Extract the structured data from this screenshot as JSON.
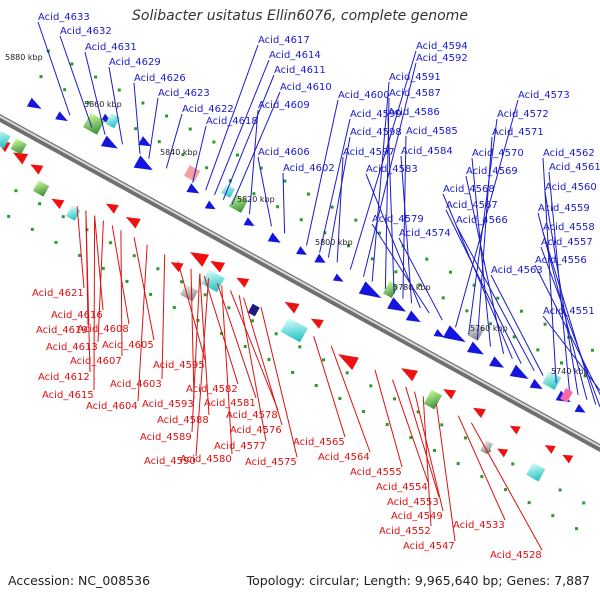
{
  "title": "Solibacter usitatus Ellin6076, complete genome",
  "footer": {
    "accession": "Accession: NC_008536",
    "summary": "Topology: circular; Length: 9,965,640 bp; Genes: 7,887"
  },
  "colors": {
    "forward_label": "#1a1acc",
    "reverse_label": "#dd1111",
    "forward_gene": "#1515e0",
    "reverse_gene": "#ee1111",
    "backbone": "#8a8a8a",
    "ruler_tick": "#2a9a2a"
  },
  "scale_labels": [
    "5880 kbp",
    "5860 kbp",
    "5840 kbp",
    "5820 kbp",
    "5800 kbp",
    "5780 kbp",
    "5760 kbp",
    "5740 kbp"
  ],
  "forward_labels": [
    "Acid_4633",
    "Acid_4632",
    "Acid_4631",
    "Acid_4629",
    "Acid_4626",
    "Acid_4623",
    "Acid_4622",
    "Acid_4618",
    "Acid_4617",
    "Acid_4614",
    "Acid_4611",
    "Acid_4610",
    "Acid_4609",
    "Acid_4606",
    "Acid_4602",
    "Acid_4600",
    "Acid_4599",
    "Acid_4598",
    "Acid_4597",
    "Acid_4594",
    "Acid_4592",
    "Acid_4591",
    "Acid_4587",
    "Acid_4586",
    "Acid_4585",
    "Acid_4584",
    "Acid_4583",
    "Acid_4579",
    "Acid_4574",
    "Acid_4573",
    "Acid_4572",
    "Acid_4571",
    "Acid_4570",
    "Acid_4569",
    "Acid_4568",
    "Acid_4567",
    "Acid_4566",
    "Acid_4563",
    "Acid_4562",
    "Acid_4561",
    "Acid_4560",
    "Acid_4559",
    "Acid_4558",
    "Acid_4557",
    "Acid_4556",
    "Acid_4551"
  ],
  "reverse_labels": [
    "Acid_4621",
    "Acid_4616",
    "Acid_4619",
    "Acid_4608",
    "Acid_4613",
    "Acid_4605",
    "Acid_4607",
    "Acid_4612",
    "Acid_4615",
    "Acid_4603",
    "Acid_4595",
    "Acid_4604",
    "Acid_4593",
    "Acid_4582",
    "Acid_4581",
    "Acid_4588",
    "Acid_4578",
    "Acid_4589",
    "Acid_4576",
    "Acid_4577",
    "Acid_4590",
    "Acid_4580",
    "Acid_4575",
    "Acid_4565",
    "Acid_4564",
    "Acid_4555",
    "Acid_4554",
    "Acid_4553",
    "Acid_4549",
    "Acid_4552",
    "Acid_4547",
    "Acid_4533",
    "Acid_4528"
  ]
}
